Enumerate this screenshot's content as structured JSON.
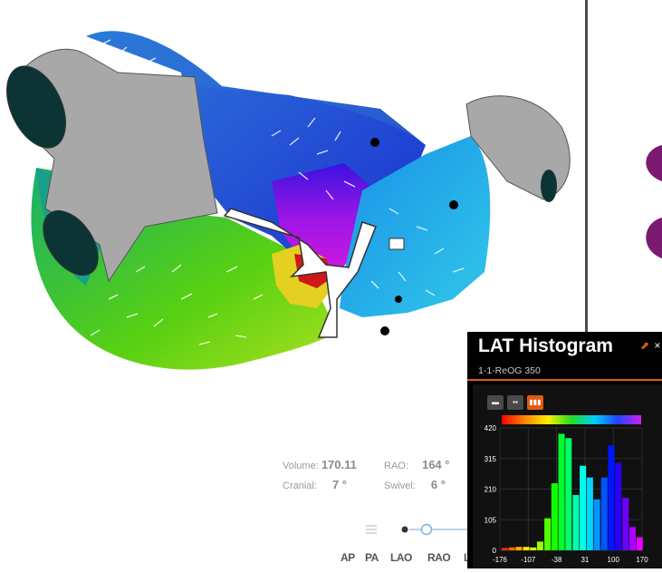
{
  "info": {
    "volume_label": "Volume:",
    "volume_value": "170.11",
    "rao_label": "RAO:",
    "rao_value": "164 °",
    "cranial_label": "Cranial:",
    "cranial_value": "7 °",
    "swivel_label": "Swivel:",
    "swivel_value": "6 °"
  },
  "views": [
    "AP",
    "PA",
    "LAO",
    "RAO",
    "L"
  ],
  "histogram": {
    "title": "LAT Histogram",
    "subtitle": "1-1-ReOG 350",
    "mode_buttons": [
      "mode-1",
      "mode-2",
      "mode-3"
    ],
    "active_mode": 2,
    "accent": "#e05a10"
  },
  "chart_data": {
    "type": "bar",
    "title": "LAT Histogram",
    "xlim": [
      -176,
      170
    ],
    "ylim": [
      0,
      420
    ],
    "x_ticks": [
      "-176",
      "-107",
      "-38",
      "31",
      "100",
      "170"
    ],
    "y_ticks": [
      "420",
      "315",
      "210",
      "105",
      "0"
    ],
    "bins": [
      -164,
      -147,
      -130,
      -112,
      -95,
      -78,
      -60,
      -43,
      -26,
      -9,
      9,
      26,
      43,
      60,
      78,
      95,
      112,
      130,
      147,
      164
    ],
    "values": [
      8,
      10,
      12,
      12,
      10,
      30,
      110,
      230,
      400,
      385,
      190,
      290,
      250,
      175,
      250,
      360,
      300,
      180,
      80,
      45
    ]
  }
}
